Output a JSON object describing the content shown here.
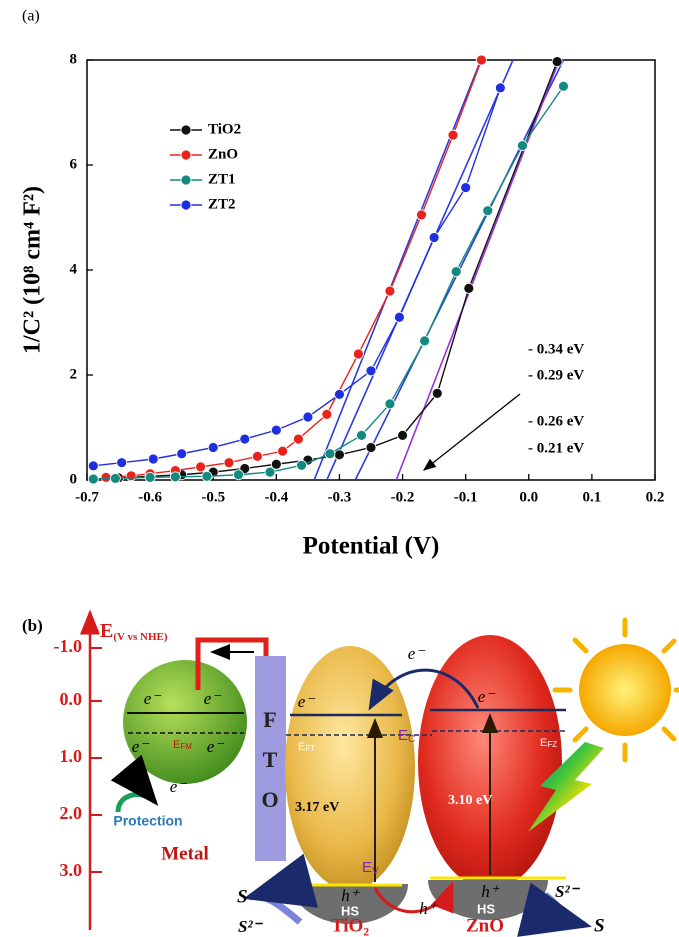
{
  "figure": {
    "panel_a_label": "(a)",
    "panel_b_label": "(b)"
  },
  "chart_data": {
    "type": "line",
    "xlabel": "Potential (V)",
    "ylabel": "1/C² (10⁸ cm⁴ F²)",
    "xlim": [
      -0.7,
      0.2
    ],
    "ylim": [
      0,
      8
    ],
    "xticks": [
      -0.7,
      -0.6,
      -0.5,
      -0.4,
      -0.3,
      -0.2,
      -0.1,
      {
        "value": 0,
        "label": "0.0"
      },
      0.1,
      0.2
    ],
    "yticks": [
      0,
      2,
      4,
      6,
      8
    ],
    "legend": "upper left",
    "series": [
      {
        "name": "TiO2",
        "color": "#111111",
        "x": [
          -0.69,
          -0.65,
          -0.6,
          -0.55,
          -0.5,
          -0.45,
          -0.4,
          -0.35,
          -0.3,
          -0.25,
          -0.2,
          -0.145,
          -0.095,
          0.045
        ],
        "values": [
          0.02,
          0.04,
          0.07,
          0.1,
          0.15,
          0.22,
          0.3,
          0.38,
          0.48,
          0.62,
          0.85,
          1.65,
          3.65,
          7.97
        ]
      },
      {
        "name": "ZnO",
        "color": "#e8231c",
        "x": [
          -0.67,
          -0.63,
          -0.6,
          -0.56,
          -0.52,
          -0.475,
          -0.43,
          -0.39,
          -0.365,
          -0.32,
          -0.27,
          -0.22,
          -0.17,
          -0.12,
          -0.075
        ],
        "values": [
          0.05,
          0.08,
          0.12,
          0.18,
          0.25,
          0.33,
          0.45,
          0.55,
          0.78,
          1.25,
          2.4,
          3.6,
          5.05,
          6.57,
          8.0
        ]
      },
      {
        "name": "ZT1",
        "color": "#138a7f",
        "x": [
          -0.69,
          -0.655,
          -0.6,
          -0.56,
          -0.51,
          -0.46,
          -0.41,
          -0.36,
          -0.315,
          -0.265,
          -0.22,
          -0.165,
          -0.115,
          -0.065,
          -0.01,
          0.055
        ],
        "values": [
          0.02,
          0.03,
          0.05,
          0.06,
          0.07,
          0.1,
          0.15,
          0.28,
          0.5,
          0.85,
          1.45,
          2.65,
          3.97,
          5.13,
          6.37,
          7.5
        ]
      },
      {
        "name": "ZT2",
        "color": "#1f2fe0",
        "x": [
          -0.69,
          -0.645,
          -0.595,
          -0.55,
          -0.5,
          -0.45,
          -0.4,
          -0.35,
          -0.3,
          -0.25,
          -0.205,
          -0.15,
          -0.1,
          -0.045
        ],
        "values": [
          0.27,
          0.33,
          0.4,
          0.5,
          0.62,
          0.78,
          0.95,
          1.2,
          1.63,
          2.08,
          3.1,
          4.62,
          5.57,
          7.47
        ]
      }
    ],
    "fit_lines": [
      {
        "color": "#2a3ce0",
        "x": [
          -0.34,
          -0.076
        ],
        "values": [
          0,
          8
        ]
      },
      {
        "color": "#2a3ce0",
        "x": [
          -0.32,
          -0.025
        ],
        "values": [
          0,
          8
        ]
      },
      {
        "color": "#2a3ce0",
        "x": [
          -0.275,
          0.055
        ],
        "values": [
          0,
          8
        ]
      },
      {
        "color": "#9a30d8",
        "x": [
          -0.21,
          0.045
        ],
        "values": [
          0,
          7.9
        ]
      }
    ],
    "annotations": [
      "- 0.34 eV",
      "- 0.29 eV",
      "- 0.26 eV",
      "- 0.21 eV"
    ]
  },
  "diagram": {
    "energy_axis": {
      "label": "E",
      "unit": "(V vs NHE)",
      "ticks": [
        "-1.0",
        "0.0",
        "1.0",
        "2.0",
        "3.0"
      ]
    },
    "metal": {
      "electrons": [
        "e⁻",
        "e⁻",
        "e⁻",
        "e⁻",
        "e⁻"
      ],
      "fermi": {
        "main": "E",
        "sub": "FM"
      },
      "protection": "Protection",
      "label": "Metal"
    },
    "fto": [
      "F",
      "T",
      "O"
    ],
    "tio2": {
      "electron": "e⁻",
      "fermi": {
        "main": "E",
        "sub": "FT"
      },
      "band_gap": "3.17 eV",
      "hole": "h⁺",
      "hs": "HS",
      "label": "TiO₂"
    },
    "zno": {
      "electron": "e⁻",
      "fermi": {
        "main": "E",
        "sub": "FZ"
      },
      "band_gap": "3.10 eV",
      "hole": "h⁺",
      "hs": "HS",
      "label": "ZnO"
    },
    "transfer": {
      "electron": "e⁻",
      "conduction": {
        "main": "E",
        "sub": "C"
      },
      "valence": {
        "main": "E",
        "sub": "V"
      },
      "hole": "h⁺"
    },
    "left_reaction": {
      "product": "S",
      "reactant": "S²⁻"
    },
    "right_reaction": {
      "reactant": "S²⁻",
      "product": "S"
    }
  }
}
